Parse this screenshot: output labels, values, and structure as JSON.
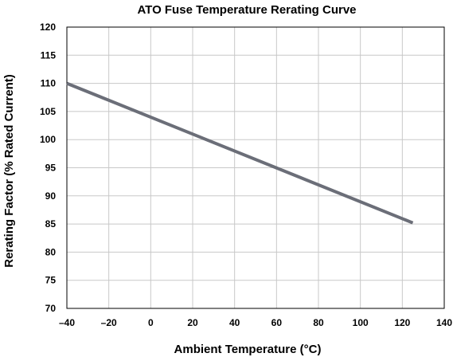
{
  "chart_data": {
    "type": "line",
    "title": "ATO Fuse Temperature Rerating Curve",
    "xlabel": "Ambient Temperature (°C)",
    "ylabel": "Rerating Factor (% Rated Current)",
    "xlim": [
      -40,
      140
    ],
    "ylim": [
      70,
      120
    ],
    "xticks": [
      -40,
      -20,
      0,
      20,
      40,
      60,
      80,
      100,
      120,
      140
    ],
    "yticks": [
      70,
      75,
      80,
      85,
      90,
      95,
      100,
      105,
      110,
      115,
      120
    ],
    "grid": true,
    "legend": "none",
    "series": [
      {
        "x": [
          -40,
          125
        ],
        "y": [
          110,
          85.2
        ],
        "color": "#6b6e78"
      }
    ]
  }
}
